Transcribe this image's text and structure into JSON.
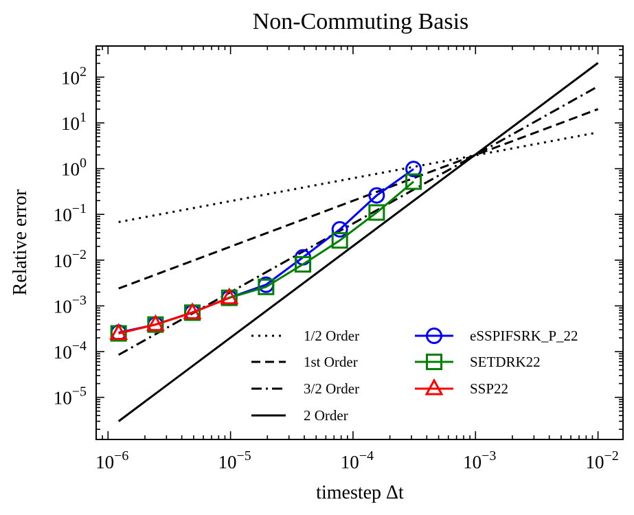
{
  "chart_data": {
    "type": "line",
    "title": "Non-Commuting Basis",
    "xlabel": "timestep Δt",
    "ylabel": "Relative error",
    "xscale": "log",
    "yscale": "log",
    "xlim": [
      8e-07,
      0.016
    ],
    "ylim": [
      1.2e-06,
      480
    ],
    "x_ticks": [
      {
        "value": 1e-06,
        "base": "10",
        "exp": "−6"
      },
      {
        "value": 1e-05,
        "base": "10",
        "exp": "−5"
      },
      {
        "value": 0.0001,
        "base": "10",
        "exp": "−4"
      },
      {
        "value": 0.001,
        "base": "10",
        "exp": "−3"
      },
      {
        "value": 0.01,
        "base": "10",
        "exp": "−2"
      }
    ],
    "y_ticks": [
      {
        "value": 1e-05,
        "base": "10",
        "exp": "−5"
      },
      {
        "value": 0.0001,
        "base": "10",
        "exp": "−4"
      },
      {
        "value": 0.001,
        "base": "10",
        "exp": "−3"
      },
      {
        "value": 0.01,
        "base": "10",
        "exp": "−2"
      },
      {
        "value": 0.1,
        "base": "10",
        "exp": "−1"
      },
      {
        "value": 1,
        "base": "10",
        "exp": "0"
      },
      {
        "value": 10,
        "base": "10",
        "exp": "1"
      },
      {
        "value": 100,
        "base": "10",
        "exp": "2"
      }
    ],
    "reference_lines": [
      {
        "name": "1/2 Order",
        "style": "dotted",
        "color": "#000000",
        "x": [
          1.22e-06,
          0.01
        ],
        "y": [
          0.068,
          6.2
        ]
      },
      {
        "name": "1st Order",
        "style": "dashed",
        "color": "#000000",
        "x": [
          1.22e-06,
          0.01
        ],
        "y": [
          0.0024,
          20
        ]
      },
      {
        "name": "3/2 Order",
        "style": "dashdot",
        "color": "#000000",
        "x": [
          1.22e-06,
          0.01
        ],
        "y": [
          8.5e-05,
          63
        ]
      },
      {
        "name": "2 Order",
        "style": "solid",
        "color": "#000000",
        "x": [
          1.22e-06,
          0.01
        ],
        "y": [
          3e-06,
          205
        ]
      }
    ],
    "series": [
      {
        "name": "eSSPIFSRK_P_22",
        "color": "#0000ff",
        "marker": "circle",
        "x": [
          1.22e-06,
          2.44e-06,
          4.88e-06,
          9.77e-06,
          1.95e-05,
          3.9e-05,
          7.8e-05,
          0.000156,
          0.000312
        ],
        "y": [
          0.00026,
          0.00039,
          0.00072,
          0.0015,
          0.0029,
          0.0115,
          0.047,
          0.26,
          0.98
        ]
      },
      {
        "name": "SETDRK22",
        "color": "#008000",
        "marker": "square",
        "x": [
          1.22e-06,
          2.44e-06,
          4.88e-06,
          9.77e-06,
          1.95e-05,
          3.9e-05,
          7.8e-05,
          0.000156,
          0.000312
        ],
        "y": [
          0.00025,
          0.00039,
          0.00071,
          0.0015,
          0.0026,
          0.0081,
          0.027,
          0.11,
          0.52
        ]
      },
      {
        "name": "SSP22",
        "color": "#ff0000",
        "marker": "triangle",
        "x": [
          1.22e-06,
          2.44e-06,
          4.88e-06,
          9.77e-06
        ],
        "y": [
          0.00025,
          0.00039,
          0.00071,
          0.0015
        ]
      }
    ],
    "legend_position": "lower-right"
  }
}
